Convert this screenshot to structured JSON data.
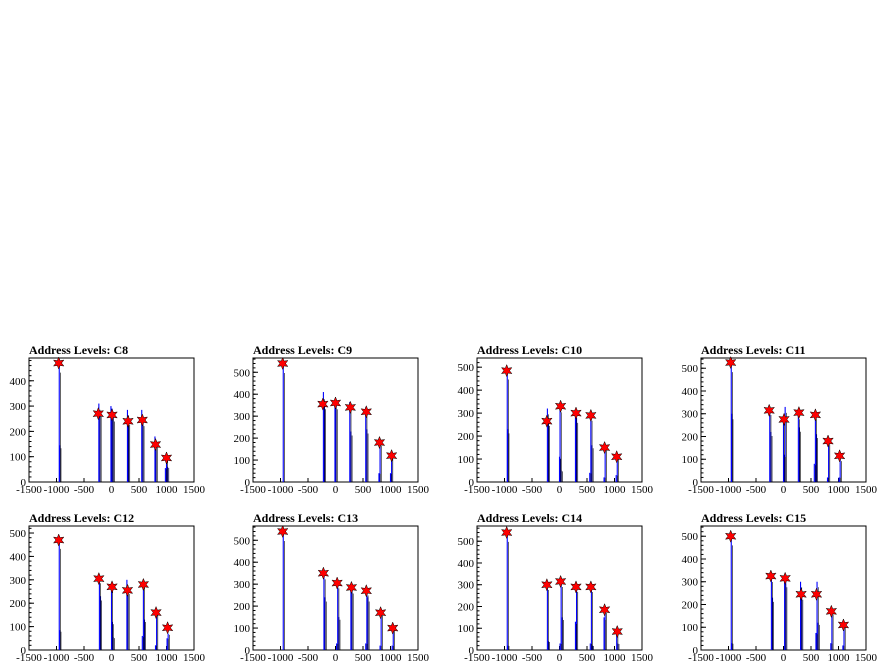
{
  "chart_data": [
    {
      "type": "bar",
      "title": "Address Levels: C8",
      "xticks": [
        "-1500",
        "-1000",
        "-500",
        "0",
        "500",
        "1000",
        "1500"
      ],
      "xlim": [
        -1500,
        1500
      ],
      "yticks": [
        "0",
        "100",
        "200",
        "300",
        "400"
      ],
      "ylim": [
        0,
        490
      ],
      "peaks": [
        [
          -960,
          470
        ],
        [
          -240,
          270
        ],
        [
          10,
          265
        ],
        [
          300,
          240
        ],
        [
          560,
          245
        ],
        [
          800,
          148
        ],
        [
          1000,
          95
        ]
      ],
      "spikes": [
        [
          -950,
          470
        ],
        [
          -940,
          145
        ],
        [
          -230,
          310
        ],
        [
          -210,
          280
        ],
        [
          -10,
          300
        ],
        [
          10,
          290
        ],
        [
          30,
          260
        ],
        [
          290,
          285
        ],
        [
          310,
          245
        ],
        [
          550,
          285
        ],
        [
          570,
          240
        ],
        [
          790,
          180
        ],
        [
          810,
          150
        ],
        [
          980,
          55
        ],
        [
          1000,
          95
        ],
        [
          1020,
          60
        ]
      ],
      "axis_color": "#000000",
      "spike_color": "#0000ff",
      "marker_color": "#ff0000"
    },
    {
      "type": "bar",
      "title": "Address Levels: C9",
      "xticks": [
        "-1500",
        "-1000",
        "-500",
        "0",
        "500",
        "1000",
        "1500"
      ],
      "xlim": [
        -1500,
        1500
      ],
      "yticks": [
        "0",
        "100",
        "200",
        "300",
        "400",
        "500"
      ],
      "ylim": [
        0,
        565
      ],
      "peaks": [
        [
          -960,
          540
        ],
        [
          -230,
          355
        ],
        [
          0,
          360
        ],
        [
          270,
          340
        ],
        [
          560,
          320
        ],
        [
          800,
          180
        ],
        [
          1020,
          120
        ]
      ],
      "spikes": [
        [
          -950,
          540
        ],
        [
          -220,
          410
        ],
        [
          -200,
          360
        ],
        [
          -10,
          370
        ],
        [
          10,
          360
        ],
        [
          260,
          365
        ],
        [
          280,
          230
        ],
        [
          550,
          340
        ],
        [
          570,
          240
        ],
        [
          790,
          40
        ],
        [
          810,
          180
        ],
        [
          1000,
          40
        ],
        [
          1020,
          120
        ]
      ],
      "axis_color": "#000000",
      "spike_color": "#0000ff",
      "marker_color": "#ff0000"
    },
    {
      "type": "bar",
      "title": "Address Levels: C10",
      "xticks": [
        "-1500",
        "-1000",
        "-500",
        "0",
        "500",
        "1000",
        "1500"
      ],
      "xlim": [
        -1500,
        1500
      ],
      "yticks": [
        "0",
        "100",
        "200",
        "300",
        "400",
        "500"
      ],
      "ylim": [
        0,
        540
      ],
      "peaks": [
        [
          -960,
          485
        ],
        [
          -230,
          265
        ],
        [
          20,
          330
        ],
        [
          300,
          300
        ],
        [
          570,
          290
        ],
        [
          820,
          150
        ],
        [
          1040,
          110
        ]
      ],
      "spikes": [
        [
          -950,
          485
        ],
        [
          -940,
          230
        ],
        [
          -220,
          320
        ],
        [
          -200,
          265
        ],
        [
          0,
          110
        ],
        [
          10,
          330
        ],
        [
          30,
          50
        ],
        [
          290,
          300
        ],
        [
          310,
          280
        ],
        [
          550,
          40
        ],
        [
          570,
          290
        ],
        [
          590,
          160
        ],
        [
          810,
          20
        ],
        [
          830,
          150
        ],
        [
          1030,
          30
        ],
        [
          1050,
          110
        ]
      ],
      "axis_color": "#000000",
      "spike_color": "#0000ff",
      "marker_color": "#ff0000"
    },
    {
      "type": "bar",
      "title": "Address Levels: C11",
      "xticks": [
        "-1500",
        "-1000",
        "-500",
        "0",
        "500",
        "1000",
        "1500"
      ],
      "xlim": [
        -1500,
        1500
      ],
      "yticks": [
        "0",
        "100",
        "200",
        "300",
        "400",
        "500"
      ],
      "ylim": [
        0,
        545
      ],
      "peaks": [
        [
          -960,
          525
        ],
        [
          -260,
          315
        ],
        [
          10,
          275
        ],
        [
          280,
          305
        ],
        [
          580,
          295
        ],
        [
          810,
          180
        ],
        [
          1020,
          115
        ]
      ],
      "spikes": [
        [
          -950,
          525
        ],
        [
          -940,
          300
        ],
        [
          -250,
          320
        ],
        [
          -230,
          220
        ],
        [
          0,
          280
        ],
        [
          10,
          120
        ],
        [
          30,
          330
        ],
        [
          270,
          300
        ],
        [
          290,
          240
        ],
        [
          560,
          80
        ],
        [
          580,
          300
        ],
        [
          600,
          210
        ],
        [
          800,
          20
        ],
        [
          820,
          180
        ],
        [
          1010,
          20
        ],
        [
          1030,
          100
        ]
      ],
      "axis_color": "#000000",
      "spike_color": "#0000ff",
      "marker_color": "#ff0000"
    },
    {
      "type": "bar",
      "title": "Address Levels: C12",
      "xticks": [
        "-1500",
        "-1000",
        "-500",
        "0",
        "500",
        "1000",
        "1500"
      ],
      "xlim": [
        -1500,
        1500
      ],
      "yticks": [
        "0",
        "100",
        "200",
        "300",
        "400",
        "500"
      ],
      "ylim": [
        0,
        530
      ],
      "peaks": [
        [
          -960,
          470
        ],
        [
          -230,
          305
        ],
        [
          10,
          270
        ],
        [
          290,
          255
        ],
        [
          580,
          280
        ],
        [
          810,
          160
        ],
        [
          1020,
          95
        ]
      ],
      "spikes": [
        [
          -950,
          470
        ],
        [
          -940,
          85
        ],
        [
          -220,
          310
        ],
        [
          -200,
          230
        ],
        [
          0,
          280
        ],
        [
          10,
          120
        ],
        [
          30,
          55
        ],
        [
          280,
          300
        ],
        [
          300,
          260
        ],
        [
          560,
          60
        ],
        [
          580,
          290
        ],
        [
          600,
          130
        ],
        [
          800,
          20
        ],
        [
          820,
          160
        ],
        [
          1010,
          50
        ],
        [
          1030,
          70
        ]
      ],
      "axis_color": "#000000",
      "spike_color": "#0000ff",
      "marker_color": "#ff0000"
    },
    {
      "type": "bar",
      "title": "Address Levels: C13",
      "xticks": [
        "-1500",
        "-1000",
        "-500",
        "0",
        "500",
        "1000",
        "1500"
      ],
      "xlim": [
        -1500,
        1500
      ],
      "yticks": [
        "0",
        "100",
        "200",
        "300",
        "400",
        "500"
      ],
      "ylim": [
        0,
        565
      ],
      "peaks": [
        [
          -960,
          540
        ],
        [
          -220,
          350
        ],
        [
          30,
          305
        ],
        [
          290,
          285
        ],
        [
          560,
          270
        ],
        [
          820,
          170
        ],
        [
          1040,
          100
        ]
      ],
      "spikes": [
        [
          -950,
          540
        ],
        [
          -210,
          350
        ],
        [
          -190,
          240
        ],
        [
          20,
          30
        ],
        [
          40,
          305
        ],
        [
          60,
          150
        ],
        [
          280,
          285
        ],
        [
          300,
          280
        ],
        [
          550,
          30
        ],
        [
          570,
          270
        ],
        [
          590,
          240
        ],
        [
          810,
          20
        ],
        [
          830,
          170
        ],
        [
          1030,
          20
        ],
        [
          1050,
          100
        ]
      ],
      "axis_color": "#000000",
      "spike_color": "#0000ff",
      "marker_color": "#ff0000"
    },
    {
      "type": "bar",
      "title": "Address Levels: C14",
      "xticks": [
        "-1500",
        "-1000",
        "-500",
        "0",
        "500",
        "1000",
        "1500"
      ],
      "xlim": [
        -1500,
        1500
      ],
      "yticks": [
        "0",
        "100",
        "200",
        "300",
        "400",
        "500"
      ],
      "ylim": [
        0,
        570
      ],
      "peaks": [
        [
          -960,
          540
        ],
        [
          -230,
          300
        ],
        [
          20,
          315
        ],
        [
          300,
          290
        ],
        [
          570,
          290
        ],
        [
          820,
          185
        ],
        [
          1050,
          85
        ]
      ],
      "spikes": [
        [
          -950,
          540
        ],
        [
          -940,
          20
        ],
        [
          -220,
          300
        ],
        [
          -200,
          40
        ],
        [
          10,
          30
        ],
        [
          30,
          315
        ],
        [
          50,
          150
        ],
        [
          290,
          130
        ],
        [
          310,
          290
        ],
        [
          560,
          30
        ],
        [
          580,
          290
        ],
        [
          600,
          20
        ],
        [
          810,
          150
        ],
        [
          830,
          185
        ],
        [
          1040,
          90
        ],
        [
          1060,
          30
        ]
      ],
      "axis_color": "#000000",
      "spike_color": "#0000ff",
      "marker_color": "#ff0000"
    },
    {
      "type": "bar",
      "title": "Address Levels: C15",
      "xticks": [
        "-1500",
        "-1000",
        "-500",
        "0",
        "500",
        "1000",
        "1500"
      ],
      "xlim": [
        -1500,
        1500
      ],
      "yticks": [
        "0",
        "100",
        "200",
        "300",
        "400",
        "500"
      ],
      "ylim": [
        0,
        545
      ],
      "peaks": [
        [
          -960,
          500
        ],
        [
          -230,
          325
        ],
        [
          30,
          315
        ],
        [
          320,
          245
        ],
        [
          600,
          245
        ],
        [
          870,
          170
        ],
        [
          1090,
          110
        ]
      ],
      "spikes": [
        [
          -950,
          500
        ],
        [
          -940,
          30
        ],
        [
          -220,
          325
        ],
        [
          -200,
          230
        ],
        [
          20,
          315
        ],
        [
          40,
          300
        ],
        [
          310,
          300
        ],
        [
          330,
          240
        ],
        [
          590,
          75
        ],
        [
          610,
          300
        ],
        [
          630,
          120
        ],
        [
          860,
          30
        ],
        [
          880,
          170
        ],
        [
          1080,
          20
        ],
        [
          1100,
          110
        ]
      ],
      "axis_color": "#000000",
      "spike_color": "#0000ff",
      "marker_color": "#ff0000"
    }
  ]
}
